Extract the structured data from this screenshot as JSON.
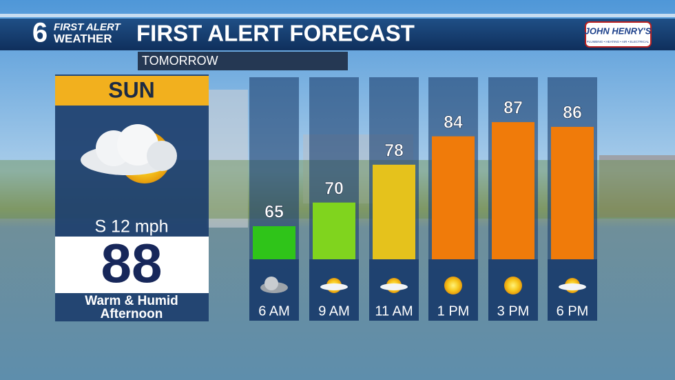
{
  "header": {
    "logo_number": "6",
    "logo_line1": "FIRST ALERT",
    "logo_line2": "WEATHER",
    "title": "FIRST ALERT FORECAST",
    "sponsor": "JOHN HENRY'S",
    "sponsor_tagline": "PLUMBING • HEATING • AIR • ELECTRICAL",
    "subtitle": "TOMORROW"
  },
  "day_panel": {
    "day": "SUN",
    "wind": "S 12 mph",
    "high": "88",
    "condition_line1": "Warm & Humid",
    "condition_line2": "Afternoon"
  },
  "chart_data": {
    "type": "bar",
    "categories": [
      "6 AM",
      "9 AM",
      "11 AM",
      "1 PM",
      "3 PM",
      "6 PM"
    ],
    "values": [
      65,
      70,
      78,
      84,
      87,
      86
    ],
    "colors": [
      "#2fc419",
      "#80d41e",
      "#e5c21c",
      "#f07b0a",
      "#f07b0a",
      "#f07b0a"
    ],
    "ylim": [
      58,
      90
    ]
  }
}
